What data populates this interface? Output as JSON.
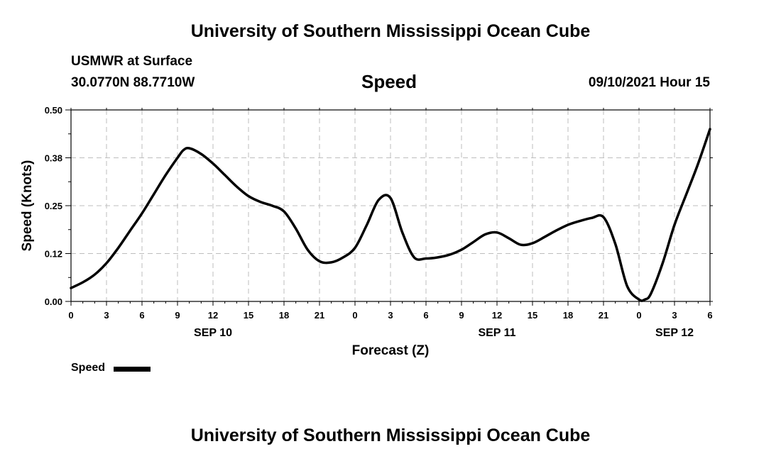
{
  "header": {
    "title_top": "University of Southern Mississippi Ocean Cube",
    "title_bottom": "University of Southern Mississippi Ocean Cube",
    "station": "USMWR at Surface",
    "coords": "30.0770N  88.7710W",
    "chart_title": "Speed",
    "datetime": "09/10/2021 Hour 15"
  },
  "legend": {
    "label": "Speed",
    "color": "#000000"
  },
  "chart_data": {
    "type": "line",
    "title": "Speed",
    "xlabel": "Forecast (Z)",
    "ylabel": "Speed (Knots)",
    "ylim": [
      0,
      0.5
    ],
    "yticks": [
      "0.00",
      "0.12",
      "0.25",
      "0.38",
      "0.50"
    ],
    "xlim": [
      0,
      54
    ],
    "xticks": [
      "0",
      "3",
      "6",
      "9",
      "12",
      "15",
      "18",
      "21",
      "0",
      "3",
      "6",
      "9",
      "12",
      "15",
      "18",
      "21",
      "0",
      "3",
      "6"
    ],
    "date_labels": [
      {
        "x": 12,
        "label": "SEP 10"
      },
      {
        "x": 36,
        "label": "SEP 11"
      },
      {
        "x": 51,
        "label": "SEP 12"
      }
    ],
    "grid": true,
    "legend_position": "bottom-left",
    "series": [
      {
        "name": "Speed",
        "x": [
          0,
          1,
          2,
          3,
          4,
          5,
          6,
          7,
          8,
          9,
          9.5,
          10,
          11,
          12,
          13,
          14,
          15,
          16,
          17,
          18,
          19,
          20,
          21,
          22,
          23,
          24,
          25,
          26,
          27,
          28,
          29,
          30,
          31,
          32,
          33,
          34,
          35,
          36,
          37,
          38,
          39,
          40,
          41,
          42,
          43,
          44,
          45,
          46,
          47,
          48,
          48.5,
          49,
          50,
          51,
          52,
          53,
          54
        ],
        "y": [
          0.035,
          0.05,
          0.07,
          0.1,
          0.14,
          0.185,
          0.23,
          0.28,
          0.33,
          0.375,
          0.395,
          0.4,
          0.385,
          0.36,
          0.33,
          0.3,
          0.275,
          0.26,
          0.25,
          0.235,
          0.19,
          0.135,
          0.105,
          0.102,
          0.115,
          0.14,
          0.2,
          0.265,
          0.27,
          0.18,
          0.115,
          0.112,
          0.115,
          0.122,
          0.135,
          0.155,
          0.175,
          0.18,
          0.165,
          0.148,
          0.152,
          0.168,
          0.185,
          0.2,
          0.21,
          0.218,
          0.22,
          0.15,
          0.04,
          0.005,
          0.005,
          0.02,
          0.1,
          0.2,
          0.28,
          0.36,
          0.45
        ],
        "color": "#000000"
      }
    ]
  }
}
